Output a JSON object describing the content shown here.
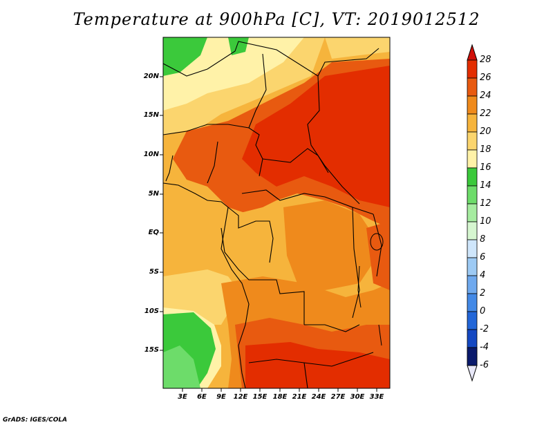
{
  "title": "Temperature at 900hPa [C], VT: 2019012512",
  "credit": "GrADS: IGES/COLA",
  "lat_labels": [
    "20N",
    "15N",
    "10N",
    "5N",
    "EQ",
    "5S",
    "10S",
    "15S"
  ],
  "lon_labels": [
    "3E",
    "6E",
    "9E",
    "12E",
    "15E",
    "18E",
    "21E",
    "24E",
    "27E",
    "30E",
    "33E"
  ],
  "colorbar": {
    "labels": [
      "28",
      "26",
      "24",
      "22",
      "20",
      "18",
      "16",
      "14",
      "12",
      "10",
      "8",
      "6",
      "4",
      "2",
      "0",
      "-2",
      "-4",
      "-6"
    ],
    "colors": [
      "#e32d00",
      "#e85a10",
      "#ef8a1c",
      "#f6b43c",
      "#fbd56e",
      "#fff2a8",
      "#3bc93b",
      "#6ddc6a",
      "#a6eca0",
      "#d6f6d0",
      "#cfe6fb",
      "#9dcaf4",
      "#6fa9ee",
      "#4389e6",
      "#2266d8",
      "#1448c2",
      "#0a2e9c",
      "#0a1a6c"
    ],
    "under_color": "#e8e8f8",
    "over_color": "#d0100a"
  }
}
